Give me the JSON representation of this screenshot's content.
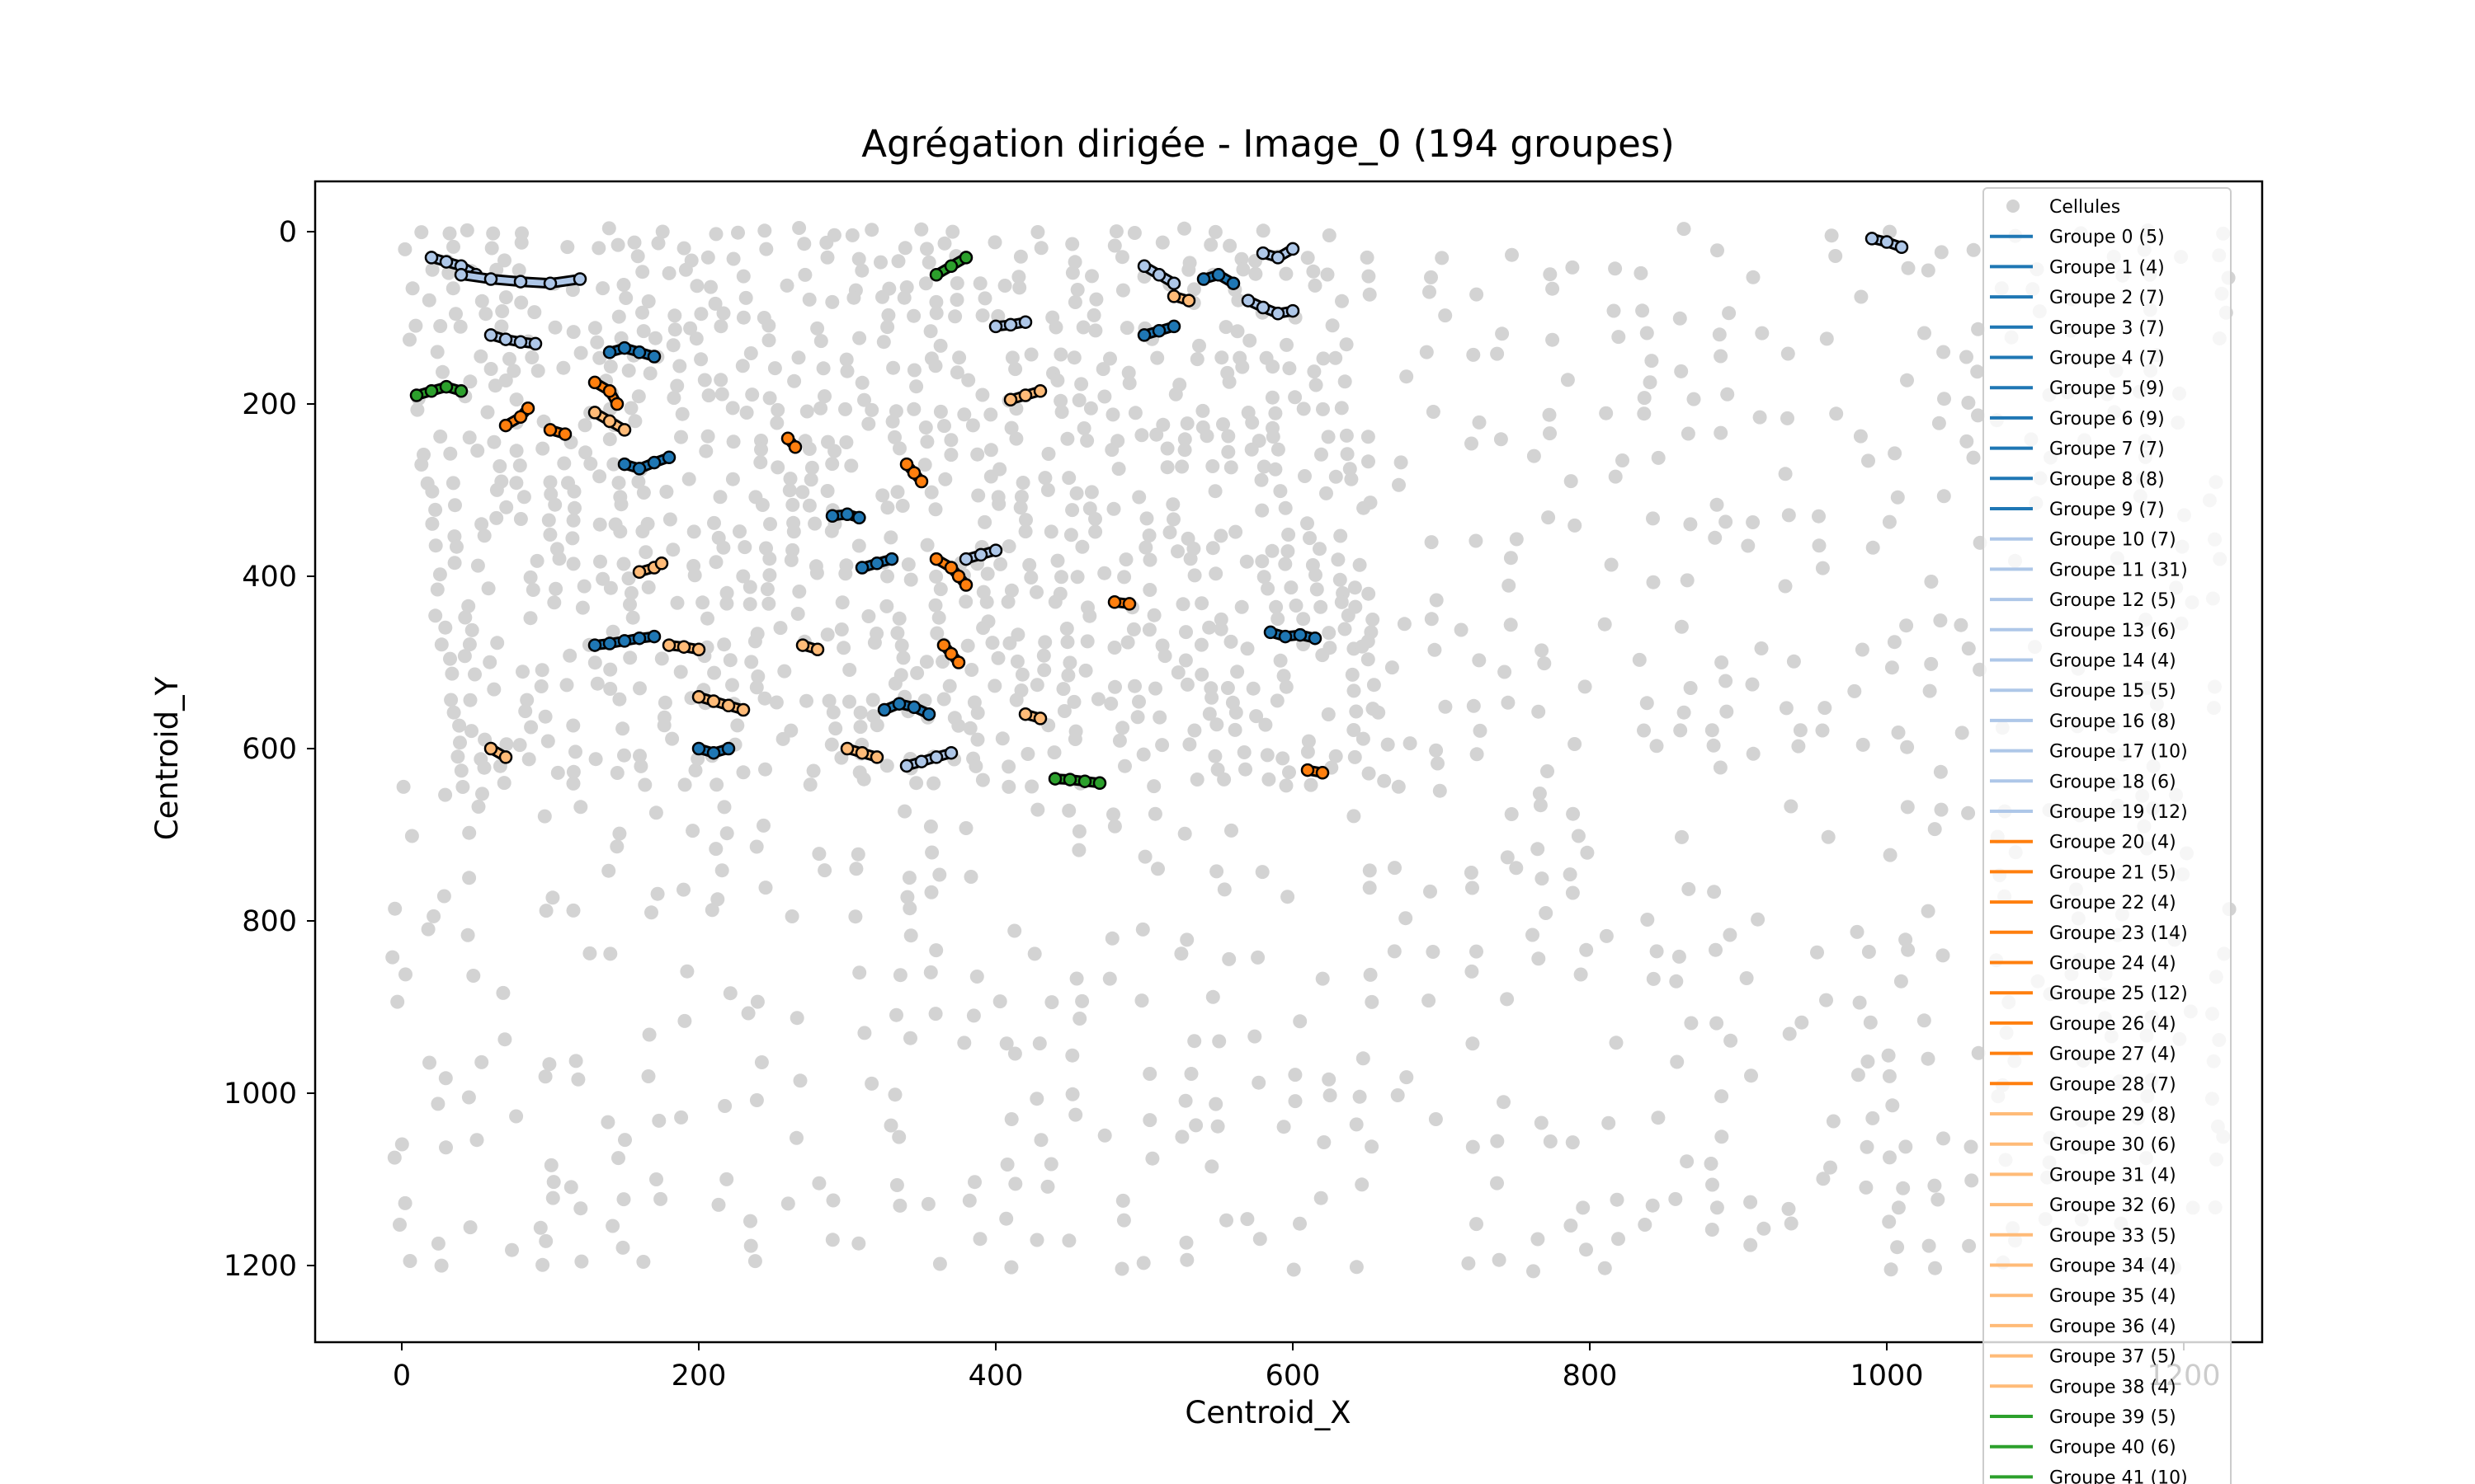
{
  "chart_data": {
    "type": "scatter",
    "title": "Agrégation dirigée - Image_0 (194 groupes)",
    "xlabel": "Centroid_X",
    "ylabel": "Centroid_Y",
    "xlim": [
      -60,
      1250
    ],
    "ylim": [
      1280,
      -60
    ],
    "xticks": [
      0,
      200,
      400,
      600,
      800,
      1000,
      1200
    ],
    "yticks": [
      0,
      200,
      400,
      600,
      800,
      1000,
      1200
    ],
    "grid": false,
    "legend_position": "right",
    "background_series": {
      "name": "Cellules",
      "color": "#d3d3d3",
      "regions": [
        {
          "x": [
            0,
            630
          ],
          "y": [
            0,
            640
          ],
          "density": "dense"
        },
        {
          "x": [
            0,
            1250
          ],
          "y": [
            0,
            1220
          ],
          "density": "sparse"
        }
      ]
    },
    "groups": [
      {
        "name": "Groupe 0 (5)",
        "color": "#1f77b4",
        "x": [
          150,
          160,
          170,
          180
        ],
        "y": [
          270,
          275,
          268,
          262
        ]
      },
      {
        "name": "Groupe 1 (4)",
        "color": "#1f77b4",
        "x": [
          290,
          300,
          308
        ],
        "y": [
          330,
          328,
          332
        ]
      },
      {
        "name": "Groupe 2 (7)",
        "color": "#1f77b4",
        "x": [
          325,
          335,
          345,
          355
        ],
        "y": [
          555,
          548,
          552,
          560
        ]
      },
      {
        "name": "Groupe 3 (7)",
        "color": "#1f77b4",
        "x": [
          540,
          550,
          560
        ],
        "y": [
          55,
          50,
          60
        ]
      },
      {
        "name": "Groupe 4 (7)",
        "color": "#1f77b4",
        "x": [
          585,
          595,
          605,
          615
        ],
        "y": [
          465,
          470,
          468,
          472
        ]
      },
      {
        "name": "Groupe 5 (9)",
        "color": "#1f77b4",
        "x": [
          200,
          210,
          220
        ],
        "y": [
          600,
          605,
          600
        ]
      },
      {
        "name": "Groupe 6 (9)",
        "color": "#1f77b4",
        "x": [
          140,
          150,
          160,
          170
        ],
        "y": [
          140,
          135,
          140,
          145
        ]
      },
      {
        "name": "Groupe 7 (7)",
        "color": "#1f77b4",
        "x": [
          310,
          320,
          330
        ],
        "y": [
          390,
          385,
          380
        ]
      },
      {
        "name": "Groupe 8 (8)",
        "color": "#1f77b4",
        "x": [
          500,
          510,
          520
        ],
        "y": [
          120,
          115,
          110
        ]
      },
      {
        "name": "Groupe 9 (7)",
        "color": "#1f77b4",
        "x": [
          130,
          140,
          150,
          160,
          170
        ],
        "y": [
          480,
          478,
          475,
          472,
          470
        ]
      },
      {
        "name": "Groupe 10 (7)",
        "color": "#aec7e8",
        "x": [
          20,
          30,
          40,
          50
        ],
        "y": [
          30,
          35,
          40,
          50
        ]
      },
      {
        "name": "Groupe 11 (31)",
        "color": "#aec7e8",
        "x": [
          40,
          60,
          80,
          100,
          120
        ],
        "y": [
          50,
          55,
          58,
          60,
          55
        ]
      },
      {
        "name": "Groupe 12 (5)",
        "color": "#aec7e8",
        "x": [
          340,
          350,
          360,
          370
        ],
        "y": [
          620,
          615,
          610,
          605
        ]
      },
      {
        "name": "Groupe 13 (6)",
        "color": "#aec7e8",
        "x": [
          570,
          580,
          590,
          600
        ],
        "y": [
          80,
          88,
          95,
          92
        ]
      },
      {
        "name": "Groupe 14 (4)",
        "color": "#aec7e8",
        "x": [
          400,
          410,
          420
        ],
        "y": [
          110,
          108,
          105
        ]
      },
      {
        "name": "Groupe 15 (5)",
        "color": "#aec7e8",
        "x": [
          380,
          390,
          400
        ],
        "y": [
          380,
          375,
          370
        ]
      },
      {
        "name": "Groupe 16 (8)",
        "color": "#aec7e8",
        "x": [
          500,
          510,
          520
        ],
        "y": [
          40,
          50,
          60
        ]
      },
      {
        "name": "Groupe 17 (10)",
        "color": "#aec7e8",
        "x": [
          60,
          70,
          80,
          90
        ],
        "y": [
          120,
          125,
          128,
          130
        ]
      },
      {
        "name": "Groupe 18 (6)",
        "color": "#aec7e8",
        "x": [
          580,
          590,
          600
        ],
        "y": [
          25,
          30,
          20
        ]
      },
      {
        "name": "Groupe 19 (12)",
        "color": "#aec7e8",
        "x": [
          990,
          1000,
          1010
        ],
        "y": [
          8,
          12,
          18
        ]
      },
      {
        "name": "Groupe 20 (4)",
        "color": "#ff7f0e",
        "x": [
          130,
          140,
          145
        ],
        "y": [
          175,
          185,
          200
        ]
      },
      {
        "name": "Groupe 21 (5)",
        "color": "#ff7f0e",
        "x": [
          360,
          370,
          375,
          380
        ],
        "y": [
          380,
          390,
          400,
          410
        ]
      },
      {
        "name": "Groupe 22 (4)",
        "color": "#ff7f0e",
        "x": [
          480,
          490
        ],
        "y": [
          430,
          432
        ]
      },
      {
        "name": "Groupe 23 (14)",
        "color": "#ff7f0e",
        "x": [
          365,
          370,
          375
        ],
        "y": [
          480,
          490,
          500
        ]
      },
      {
        "name": "Groupe 24 (4)",
        "color": "#ff7f0e",
        "x": [
          260,
          265
        ],
        "y": [
          240,
          250
        ]
      },
      {
        "name": "Groupe 25 (12)",
        "color": "#ff7f0e",
        "x": [
          340,
          345,
          350
        ],
        "y": [
          270,
          280,
          290
        ]
      },
      {
        "name": "Groupe 26 (4)",
        "color": "#ff7f0e",
        "x": [
          610,
          620
        ],
        "y": [
          625,
          628
        ]
      },
      {
        "name": "Groupe 27 (4)",
        "color": "#ff7f0e",
        "x": [
          70,
          80,
          85
        ],
        "y": [
          225,
          215,
          205
        ]
      },
      {
        "name": "Groupe 28 (7)",
        "color": "#ff7f0e",
        "x": [
          100,
          110
        ],
        "y": [
          230,
          235
        ]
      },
      {
        "name": "Groupe 29 (8)",
        "color": "#ffbb78",
        "x": [
          200,
          210,
          220,
          230
        ],
        "y": [
          540,
          545,
          550,
          555
        ]
      },
      {
        "name": "Groupe 30 (6)",
        "color": "#ffbb78",
        "x": [
          130,
          140,
          150
        ],
        "y": [
          210,
          220,
          230
        ]
      },
      {
        "name": "Groupe 31 (4)",
        "color": "#ffbb78",
        "x": [
          270,
          280
        ],
        "y": [
          480,
          485
        ]
      },
      {
        "name": "Groupe 32 (6)",
        "color": "#ffbb78",
        "x": [
          410,
          420,
          430
        ],
        "y": [
          195,
          190,
          185
        ]
      },
      {
        "name": "Groupe 33 (5)",
        "color": "#ffbb78",
        "x": [
          180,
          190,
          200
        ],
        "y": [
          480,
          482,
          485
        ]
      },
      {
        "name": "Groupe 34 (4)",
        "color": "#ffbb78",
        "x": [
          60,
          70
        ],
        "y": [
          600,
          610
        ]
      },
      {
        "name": "Groupe 35 (4)",
        "color": "#ffbb78",
        "x": [
          520,
          530
        ],
        "y": [
          75,
          80
        ]
      },
      {
        "name": "Groupe 36 (4)",
        "color": "#ffbb78",
        "x": [
          160,
          170,
          175
        ],
        "y": [
          395,
          390,
          385
        ]
      },
      {
        "name": "Groupe 37 (5)",
        "color": "#ffbb78",
        "x": [
          300,
          310,
          320
        ],
        "y": [
          600,
          605,
          610
        ]
      },
      {
        "name": "Groupe 38 (4)",
        "color": "#ffbb78",
        "x": [
          420,
          430
        ],
        "y": [
          560,
          565
        ]
      },
      {
        "name": "Groupe 39 (5)",
        "color": "#2ca02c",
        "x": [
          440,
          450,
          460,
          470
        ],
        "y": [
          635,
          636,
          638,
          640
        ]
      },
      {
        "name": "Groupe 40 (6)",
        "color": "#2ca02c",
        "x": [
          360,
          370,
          380
        ],
        "y": [
          50,
          40,
          30
        ]
      },
      {
        "name": "Groupe 41 (10)",
        "color": "#2ca02c",
        "x": [
          10,
          20,
          30,
          40
        ],
        "y": [
          190,
          185,
          180,
          185
        ]
      }
    ],
    "legend": [
      {
        "label": "Cellules",
        "kind": "marker",
        "color": "#d3d3d3"
      },
      {
        "label": "Groupe 0 (5)",
        "kind": "line",
        "color": "#1f77b4"
      },
      {
        "label": "Groupe 1 (4)",
        "kind": "line",
        "color": "#1f77b4"
      },
      {
        "label": "Groupe 2 (7)",
        "kind": "line",
        "color": "#1f77b4"
      },
      {
        "label": "Groupe 3 (7)",
        "kind": "line",
        "color": "#1f77b4"
      },
      {
        "label": "Groupe 4 (7)",
        "kind": "line",
        "color": "#1f77b4"
      },
      {
        "label": "Groupe 5 (9)",
        "kind": "line",
        "color": "#1f77b4"
      },
      {
        "label": "Groupe 6 (9)",
        "kind": "line",
        "color": "#1f77b4"
      },
      {
        "label": "Groupe 7 (7)",
        "kind": "line",
        "color": "#1f77b4"
      },
      {
        "label": "Groupe 8 (8)",
        "kind": "line",
        "color": "#1f77b4"
      },
      {
        "label": "Groupe 9 (7)",
        "kind": "line",
        "color": "#1f77b4"
      },
      {
        "label": "Groupe 10 (7)",
        "kind": "line",
        "color": "#aec7e8"
      },
      {
        "label": "Groupe 11 (31)",
        "kind": "line",
        "color": "#aec7e8"
      },
      {
        "label": "Groupe 12 (5)",
        "kind": "line",
        "color": "#aec7e8"
      },
      {
        "label": "Groupe 13 (6)",
        "kind": "line",
        "color": "#aec7e8"
      },
      {
        "label": "Groupe 14 (4)",
        "kind": "line",
        "color": "#aec7e8"
      },
      {
        "label": "Groupe 15 (5)",
        "kind": "line",
        "color": "#aec7e8"
      },
      {
        "label": "Groupe 16 (8)",
        "kind": "line",
        "color": "#aec7e8"
      },
      {
        "label": "Groupe 17 (10)",
        "kind": "line",
        "color": "#aec7e8"
      },
      {
        "label": "Groupe 18 (6)",
        "kind": "line",
        "color": "#aec7e8"
      },
      {
        "label": "Groupe 19 (12)",
        "kind": "line",
        "color": "#aec7e8"
      },
      {
        "label": "Groupe 20 (4)",
        "kind": "line",
        "color": "#ff7f0e"
      },
      {
        "label": "Groupe 21 (5)",
        "kind": "line",
        "color": "#ff7f0e"
      },
      {
        "label": "Groupe 22 (4)",
        "kind": "line",
        "color": "#ff7f0e"
      },
      {
        "label": "Groupe 23 (14)",
        "kind": "line",
        "color": "#ff7f0e"
      },
      {
        "label": "Groupe 24 (4)",
        "kind": "line",
        "color": "#ff7f0e"
      },
      {
        "label": "Groupe 25 (12)",
        "kind": "line",
        "color": "#ff7f0e"
      },
      {
        "label": "Groupe 26 (4)",
        "kind": "line",
        "color": "#ff7f0e"
      },
      {
        "label": "Groupe 27 (4)",
        "kind": "line",
        "color": "#ff7f0e"
      },
      {
        "label": "Groupe 28 (7)",
        "kind": "line",
        "color": "#ff7f0e"
      },
      {
        "label": "Groupe 29 (8)",
        "kind": "line",
        "color": "#ffbb78"
      },
      {
        "label": "Groupe 30 (6)",
        "kind": "line",
        "color": "#ffbb78"
      },
      {
        "label": "Groupe 31 (4)",
        "kind": "line",
        "color": "#ffbb78"
      },
      {
        "label": "Groupe 32 (6)",
        "kind": "line",
        "color": "#ffbb78"
      },
      {
        "label": "Groupe 33 (5)",
        "kind": "line",
        "color": "#ffbb78"
      },
      {
        "label": "Groupe 34 (4)",
        "kind": "line",
        "color": "#ffbb78"
      },
      {
        "label": "Groupe 35 (4)",
        "kind": "line",
        "color": "#ffbb78"
      },
      {
        "label": "Groupe 36 (4)",
        "kind": "line",
        "color": "#ffbb78"
      },
      {
        "label": "Groupe 37 (5)",
        "kind": "line",
        "color": "#ffbb78"
      },
      {
        "label": "Groupe 38 (4)",
        "kind": "line",
        "color": "#ffbb78"
      },
      {
        "label": "Groupe 39 (5)",
        "kind": "line",
        "color": "#2ca02c"
      },
      {
        "label": "Groupe 40 (6)",
        "kind": "line",
        "color": "#2ca02c"
      },
      {
        "label": "Groupe 41 (10)",
        "kind": "line",
        "color": "#2ca02c"
      }
    ]
  }
}
